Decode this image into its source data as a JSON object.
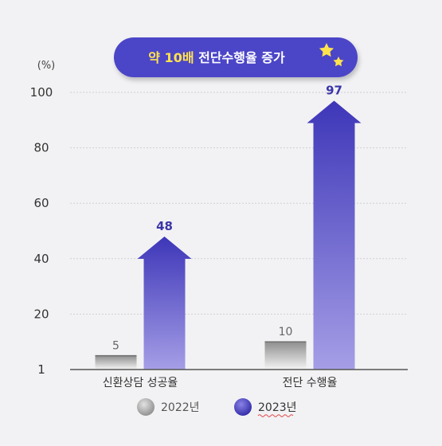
{
  "badge": {
    "highlight": "약 10배",
    "rest": " 전단수행율 증가"
  },
  "colors": {
    "badge_bg": "#4b44c8",
    "badge_highlight": "#ffe34d",
    "series_2022": "#b5b5b5",
    "series_2023": "#4a43c4",
    "label_2022": "#666666",
    "label_2023": "#3b35a8"
  },
  "chart_data": {
    "type": "bar",
    "ylabel": "(%)",
    "yticks": [
      "1",
      "20",
      "40",
      "60",
      "80",
      "100"
    ],
    "ylim": [
      0,
      100
    ],
    "grid": true,
    "categories": [
      "신환상담 성공율",
      "전단 수행율"
    ],
    "series": [
      {
        "name": "2022년",
        "values": [
          5,
          10
        ]
      },
      {
        "name": "2023년",
        "values": [
          48,
          97
        ]
      }
    ],
    "legend_position": "bottom"
  }
}
